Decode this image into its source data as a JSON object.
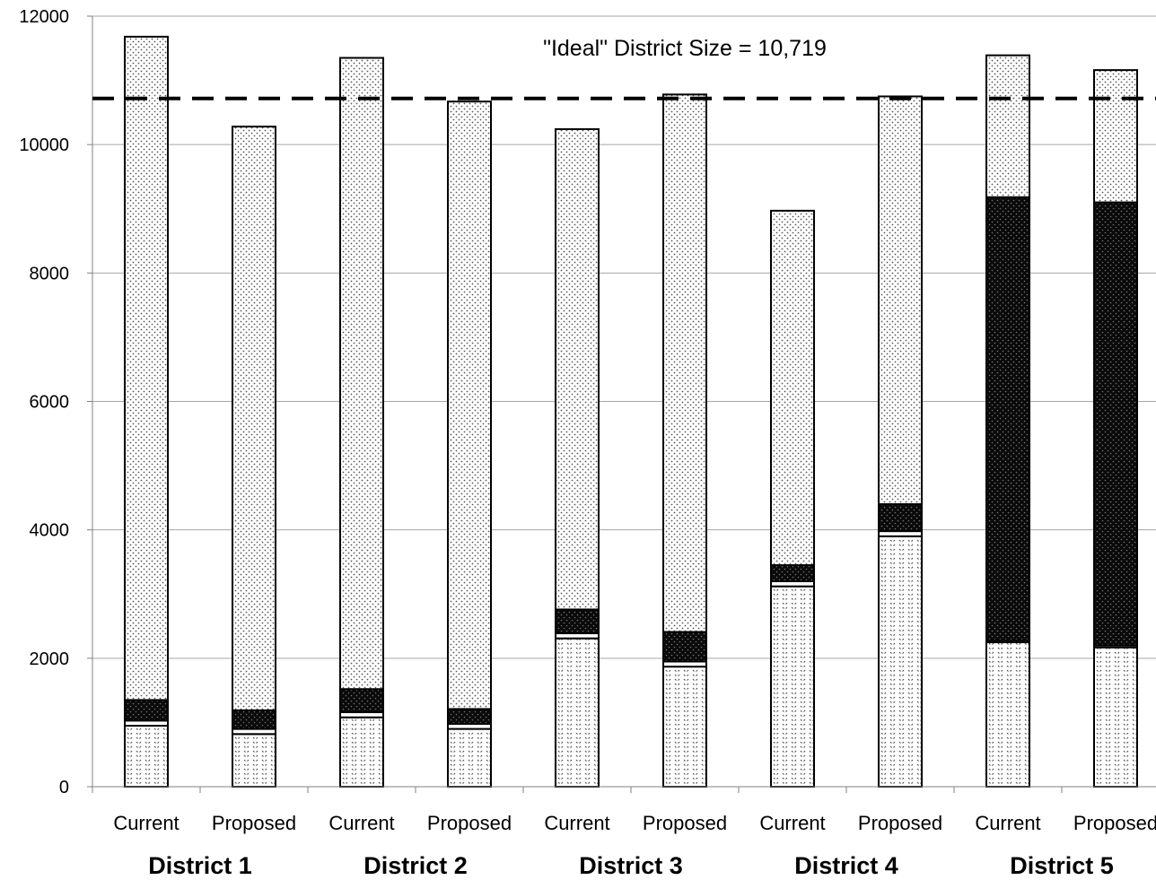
{
  "chart_data": {
    "type": "bar",
    "stacked": true,
    "categories": [
      "Current",
      "Proposed",
      "Current",
      "Proposed",
      "Current",
      "Proposed",
      "Current",
      "Proposed",
      "Current",
      "Proposed"
    ],
    "groups": [
      "District 1",
      "District 2",
      "District 3",
      "District 4",
      "District 5"
    ],
    "ylim": [
      0,
      12000
    ],
    "yticks": [
      "0",
      "2000",
      "4000",
      "6000",
      "8000",
      "10000",
      "12000"
    ],
    "grid": true,
    "legend": "none",
    "series": [
      {
        "values": [
          950,
          820,
          1080,
          900,
          2310,
          1870,
          3120,
          3900,
          2250,
          2170
        ]
      },
      {
        "values": [
          80,
          80,
          80,
          80,
          80,
          80,
          80,
          80,
          30,
          30
        ]
      },
      {
        "values": [
          320,
          290,
          360,
          230,
          370,
          460,
          250,
          420,
          6900,
          6900
        ]
      },
      {
        "values": [
          10330,
          9090,
          9830,
          9460,
          7480,
          8370,
          5520,
          6350,
          2210,
          2060
        ]
      }
    ],
    "reference_line": {
      "value": 10719,
      "label": "\"Ideal\" District Size = 10,719"
    }
  }
}
